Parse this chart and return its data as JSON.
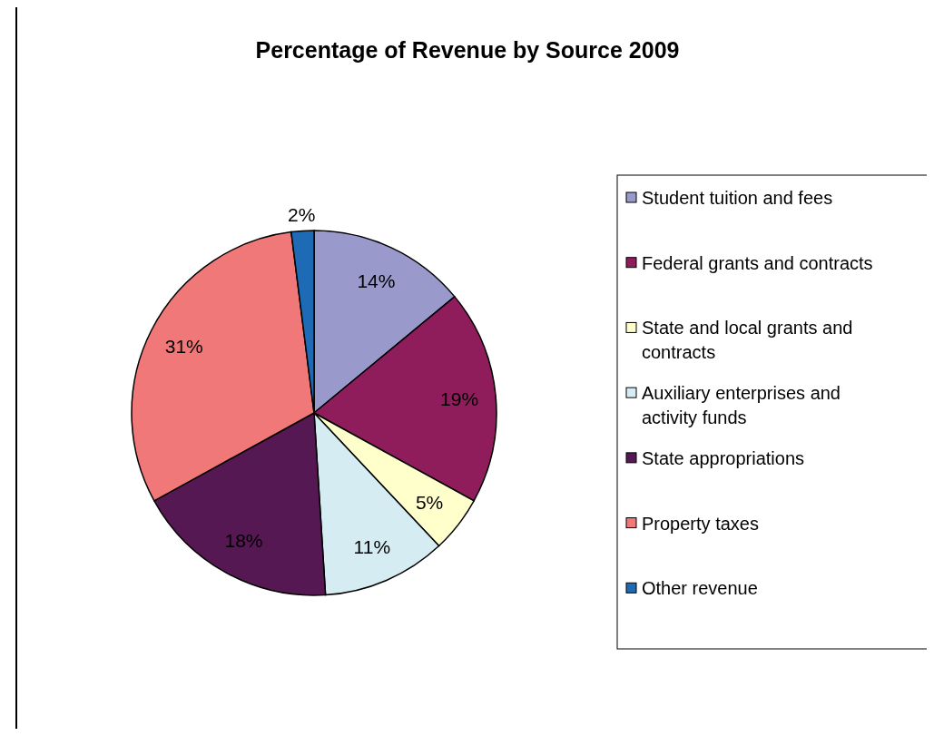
{
  "chart_data": {
    "type": "pie",
    "title": "Percentage of Revenue by Source 2009",
    "categories": [
      "Student tuition and fees",
      "Federal grants and contracts",
      "State and local grants and contracts",
      "Auxiliary enterprises and activity funds",
      "State appropriations",
      "Property taxes",
      "Other revenue"
    ],
    "values": [
      14,
      19,
      5,
      11,
      18,
      31,
      2
    ],
    "colors": [
      "#9999cc",
      "#8f1d5c",
      "#ffffcc",
      "#d5ecf2",
      "#561852",
      "#f07878",
      "#1f6ab5"
    ],
    "value_labels": [
      "14%",
      "19%",
      "5%",
      "11%",
      "18%",
      "31%",
      "2%"
    ],
    "legend": "right"
  }
}
